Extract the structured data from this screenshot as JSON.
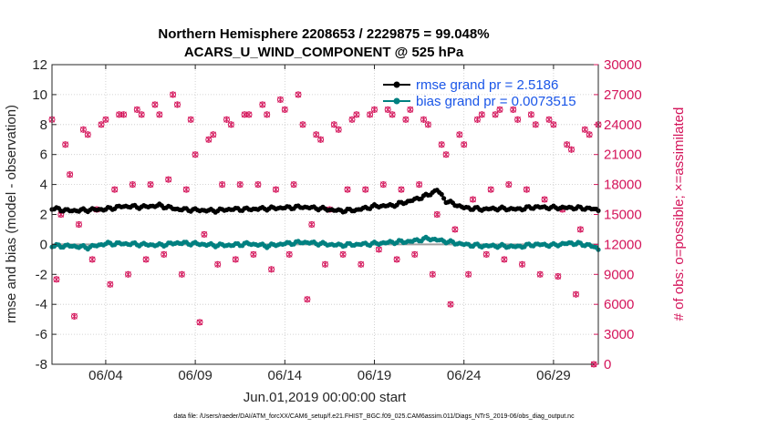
{
  "chart_data": {
    "type": "line",
    "title": "Northern Hemisphere 2208653 / 2229875 = 99.048%",
    "subtitle": "ACARS_U_WIND_COMPONENT @ 525 hPa",
    "xlabel": "Jun.01,2019 00:00:00 start",
    "ylabel": "rmse and bias (model - observation)",
    "y2label": "# of obs: o=possible; ×=assimilated",
    "xlim": [
      1,
      31.5
    ],
    "ylim": [
      -8,
      12
    ],
    "y2lim": [
      0,
      30000
    ],
    "xticks": [
      4,
      9,
      14,
      19,
      24,
      29
    ],
    "xticklabels": [
      "06/04",
      "06/09",
      "06/14",
      "06/19",
      "06/24",
      "06/29"
    ],
    "yticks": [
      -8,
      -6,
      -4,
      -2,
      0,
      2,
      4,
      6,
      8,
      10,
      12
    ],
    "y2ticks": [
      0,
      3000,
      6000,
      9000,
      12000,
      15000,
      18000,
      21000,
      24000,
      27000,
      30000
    ],
    "legend": [
      {
        "label": "rmse grand pr = 2.5186",
        "color": "#000000"
      },
      {
        "label": "bias grand pr = 0.0073515",
        "color": "#008080"
      }
    ],
    "zero_line": 0,
    "series": [
      {
        "name": "rmse",
        "color": "#000000",
        "axis": "left",
        "keypoints": [
          [
            1.0,
            2.4
          ],
          [
            2.0,
            2.25
          ],
          [
            3.0,
            2.3
          ],
          [
            4.0,
            2.35
          ],
          [
            5.0,
            2.55
          ],
          [
            6.0,
            2.5
          ],
          [
            7.0,
            2.6
          ],
          [
            8.0,
            2.35
          ],
          [
            9.0,
            2.3
          ],
          [
            10.0,
            2.25
          ],
          [
            11.0,
            2.35
          ],
          [
            12.0,
            2.35
          ],
          [
            13.0,
            2.4
          ],
          [
            14.0,
            2.45
          ],
          [
            15.0,
            2.5
          ],
          [
            16.0,
            2.4
          ],
          [
            17.0,
            2.25
          ],
          [
            18.0,
            2.3
          ],
          [
            19.0,
            2.55
          ],
          [
            20.0,
            2.6
          ],
          [
            21.0,
            2.9
          ],
          [
            22.0,
            3.3
          ],
          [
            22.5,
            3.65
          ],
          [
            23.0,
            2.9
          ],
          [
            24.0,
            2.45
          ],
          [
            25.0,
            2.35
          ],
          [
            26.0,
            2.4
          ],
          [
            27.0,
            2.35
          ],
          [
            28.0,
            2.5
          ],
          [
            29.0,
            2.45
          ],
          [
            30.0,
            2.45
          ],
          [
            31.0,
            2.4
          ],
          [
            31.5,
            2.3
          ]
        ]
      },
      {
        "name": "bias",
        "color": "#008080",
        "axis": "left",
        "keypoints": [
          [
            1.0,
            -0.1
          ],
          [
            2.0,
            -0.1
          ],
          [
            3.0,
            -0.2
          ],
          [
            4.0,
            0.05
          ],
          [
            5.0,
            0.05
          ],
          [
            6.0,
            0.0
          ],
          [
            7.0,
            -0.05
          ],
          [
            8.0,
            0.1
          ],
          [
            9.0,
            0.05
          ],
          [
            10.0,
            -0.05
          ],
          [
            11.0,
            -0.05
          ],
          [
            12.0,
            0.05
          ],
          [
            13.0,
            -0.1
          ],
          [
            14.0,
            0.05
          ],
          [
            15.0,
            0.15
          ],
          [
            16.0,
            0.05
          ],
          [
            17.0,
            -0.05
          ],
          [
            18.0,
            0.0
          ],
          [
            19.0,
            0.05
          ],
          [
            20.0,
            0.15
          ],
          [
            21.0,
            0.2
          ],
          [
            22.0,
            0.4
          ],
          [
            23.0,
            0.2
          ],
          [
            24.0,
            0.0
          ],
          [
            25.0,
            -0.1
          ],
          [
            26.0,
            -0.1
          ],
          [
            27.0,
            -0.15
          ],
          [
            28.0,
            0.0
          ],
          [
            29.0,
            -0.05
          ],
          [
            30.0,
            0.1
          ],
          [
            31.0,
            -0.05
          ],
          [
            31.5,
            -0.3
          ]
        ]
      },
      {
        "name": "obs possible",
        "color": "#d4145a",
        "axis": "right",
        "marker": "o",
        "keypoints": [
          [
            1.0,
            24500
          ],
          [
            1.25,
            8500
          ],
          [
            1.5,
            15000
          ],
          [
            1.75,
            22000
          ],
          [
            2.0,
            19000
          ],
          [
            2.25,
            4800
          ],
          [
            2.5,
            14000
          ],
          [
            2.75,
            23500
          ],
          [
            3.0,
            23000
          ],
          [
            3.25,
            10500
          ],
          [
            3.5,
            15500
          ],
          [
            3.75,
            24000
          ],
          [
            4.0,
            24500
          ],
          [
            4.25,
            8000
          ],
          [
            4.5,
            17500
          ],
          [
            4.75,
            25000
          ],
          [
            5.0,
            25000
          ],
          [
            5.25,
            9000
          ],
          [
            5.5,
            18000
          ],
          [
            5.75,
            25500
          ],
          [
            6.0,
            25000
          ],
          [
            6.25,
            10500
          ],
          [
            6.5,
            18000
          ],
          [
            6.75,
            26000
          ],
          [
            7.0,
            25000
          ],
          [
            7.25,
            11000
          ],
          [
            7.5,
            18500
          ],
          [
            7.75,
            27000
          ],
          [
            8.0,
            26000
          ],
          [
            8.25,
            9000
          ],
          [
            8.5,
            17500
          ],
          [
            8.75,
            24500
          ],
          [
            9.0,
            21000
          ],
          [
            9.25,
            4200
          ],
          [
            9.5,
            13000
          ],
          [
            9.75,
            22500
          ],
          [
            10.0,
            23000
          ],
          [
            10.25,
            10000
          ],
          [
            10.5,
            18000
          ],
          [
            10.75,
            24500
          ],
          [
            11.0,
            24000
          ],
          [
            11.25,
            10500
          ],
          [
            11.5,
            18000
          ],
          [
            11.75,
            25000
          ],
          [
            12.0,
            25000
          ],
          [
            12.25,
            11000
          ],
          [
            12.5,
            18000
          ],
          [
            12.75,
            26000
          ],
          [
            13.0,
            25000
          ],
          [
            13.25,
            9500
          ],
          [
            13.5,
            17500
          ],
          [
            13.75,
            26500
          ],
          [
            14.0,
            25500
          ],
          [
            14.25,
            11000
          ],
          [
            14.5,
            18000
          ],
          [
            14.75,
            27000
          ],
          [
            15.0,
            24000
          ],
          [
            15.25,
            6500
          ],
          [
            15.5,
            14000
          ],
          [
            15.75,
            23000
          ],
          [
            16.0,
            22500
          ],
          [
            16.25,
            10000
          ],
          [
            16.5,
            15500
          ],
          [
            16.75,
            24000
          ],
          [
            17.0,
            23500
          ],
          [
            17.25,
            11000
          ],
          [
            17.5,
            17500
          ],
          [
            17.75,
            24500
          ],
          [
            18.0,
            25000
          ],
          [
            18.25,
            10000
          ],
          [
            18.5,
            17500
          ],
          [
            18.75,
            25000
          ],
          [
            19.0,
            25500
          ],
          [
            19.25,
            11500
          ],
          [
            19.5,
            18000
          ],
          [
            19.75,
            25500
          ],
          [
            20.0,
            25000
          ],
          [
            20.25,
            10500
          ],
          [
            20.5,
            17500
          ],
          [
            20.75,
            24500
          ],
          [
            21.0,
            25500
          ],
          [
            21.25,
            11000
          ],
          [
            21.5,
            18000
          ],
          [
            21.75,
            24500
          ],
          [
            22.0,
            24000
          ],
          [
            22.25,
            9000
          ],
          [
            22.5,
            15000
          ],
          [
            22.75,
            22000
          ],
          [
            23.0,
            21000
          ],
          [
            23.25,
            6000
          ],
          [
            23.5,
            13500
          ],
          [
            23.75,
            23000
          ],
          [
            24.0,
            22000
          ],
          [
            24.25,
            9000
          ],
          [
            24.5,
            16500
          ],
          [
            24.75,
            24500
          ],
          [
            25.0,
            25000
          ],
          [
            25.25,
            11000
          ],
          [
            25.5,
            17500
          ],
          [
            25.75,
            25000
          ],
          [
            26.0,
            25500
          ],
          [
            26.25,
            10500
          ],
          [
            26.5,
            18000
          ],
          [
            26.75,
            25500
          ],
          [
            27.0,
            24500
          ],
          [
            27.25,
            10000
          ],
          [
            27.5,
            17500
          ],
          [
            27.75,
            25000
          ],
          [
            28.0,
            24000
          ],
          [
            28.25,
            9000
          ],
          [
            28.5,
            16500
          ],
          [
            28.75,
            24500
          ],
          [
            29.0,
            24000
          ],
          [
            29.25,
            8800
          ],
          [
            29.5,
            15500
          ],
          [
            29.75,
            22000
          ],
          [
            30.0,
            21500
          ],
          [
            30.25,
            7000
          ],
          [
            30.5,
            13500
          ],
          [
            30.75,
            23500
          ],
          [
            31.0,
            23000
          ],
          [
            31.25,
            0
          ],
          [
            31.5,
            24000
          ]
        ]
      }
    ],
    "footnote": "data file: /Users/raeder/DAI/ATM_forcXX/CAM6_setup/f.e21.FHIST_BGC.f09_025.CAM6assim.011/Diags_NTrS_2019-06/obs_diag_output.nc"
  }
}
